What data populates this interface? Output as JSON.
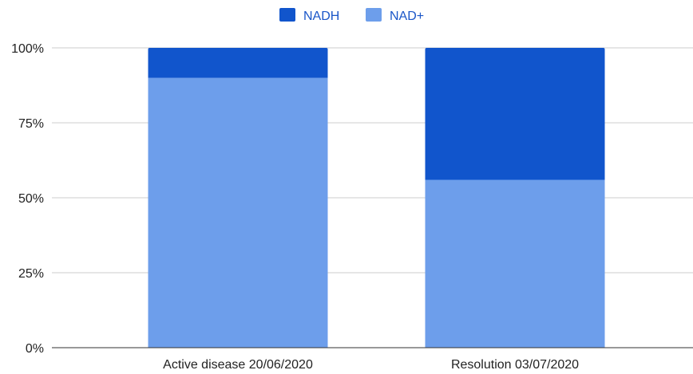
{
  "chart_data": {
    "type": "bar",
    "stacked": true,
    "percent_stacked": true,
    "categories": [
      "Active disease 20/06/2020",
      "Resolution 03/07/2020"
    ],
    "series": [
      {
        "name": "NAD+",
        "values": [
          90,
          56
        ],
        "color": "#6d9eeb"
      },
      {
        "name": "NADH",
        "values": [
          10,
          44
        ],
        "color": "#1155cc"
      }
    ],
    "legend_order": [
      "NADH",
      "NAD+"
    ],
    "legend_position": "top-center",
    "ylim": [
      0,
      100
    ],
    "yticks": [
      0,
      25,
      50,
      75,
      100
    ],
    "ytick_labels": [
      "0%",
      "25%",
      "50%",
      "75%",
      "100%"
    ],
    "grid": true,
    "title": "",
    "xlabel": "",
    "ylabel": ""
  }
}
